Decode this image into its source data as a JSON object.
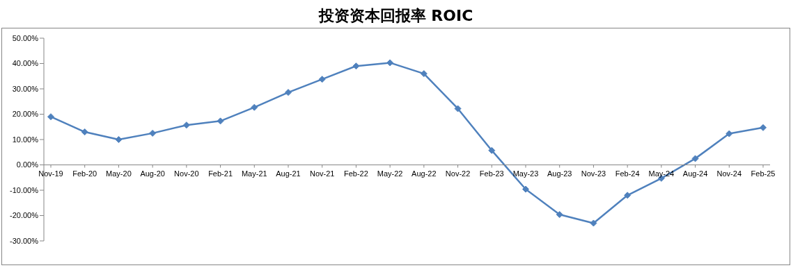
{
  "chart_data": {
    "type": "line",
    "title": "投资资本回报率 ROIC",
    "categories": [
      "Nov-19",
      "Feb-20",
      "May-20",
      "Aug-20",
      "Nov-20",
      "Feb-21",
      "May-21",
      "Aug-21",
      "Nov-21",
      "Feb-22",
      "May-22",
      "Aug-22",
      "Nov-22",
      "Feb-23",
      "May-23",
      "Aug-23",
      "Nov-23",
      "Feb-24",
      "May-24",
      "Aug-24",
      "Nov-24",
      "Feb-25"
    ],
    "series": [
      {
        "color": "#4f81bd",
        "values": [
          19,
          13,
          10,
          12.5,
          15.7,
          17.3,
          22.7,
          28.6,
          33.8,
          39,
          40.3,
          36,
          22.2,
          5.7,
          -9.6,
          -19.6,
          -23,
          -12,
          -5.3,
          2.5,
          12.3,
          14.7
        ]
      }
    ],
    "ylim": [
      -30,
      50
    ],
    "yticks": [
      {
        "value": -30,
        "label": "-30.00%"
      },
      {
        "value": -20,
        "label": "-20.00%"
      },
      {
        "value": -10,
        "label": "-10.00%"
      },
      {
        "value": 0,
        "label": "0.00%"
      },
      {
        "value": 10,
        "label": "10.00%"
      },
      {
        "value": 20,
        "label": "20.00%"
      },
      {
        "value": 30,
        "label": "30.00%"
      },
      {
        "value": 40,
        "label": "40.00%"
      },
      {
        "value": 50,
        "label": "50.00%"
      }
    ],
    "grid": false,
    "legend": false,
    "marker": "diamond",
    "line_style": "solid"
  }
}
